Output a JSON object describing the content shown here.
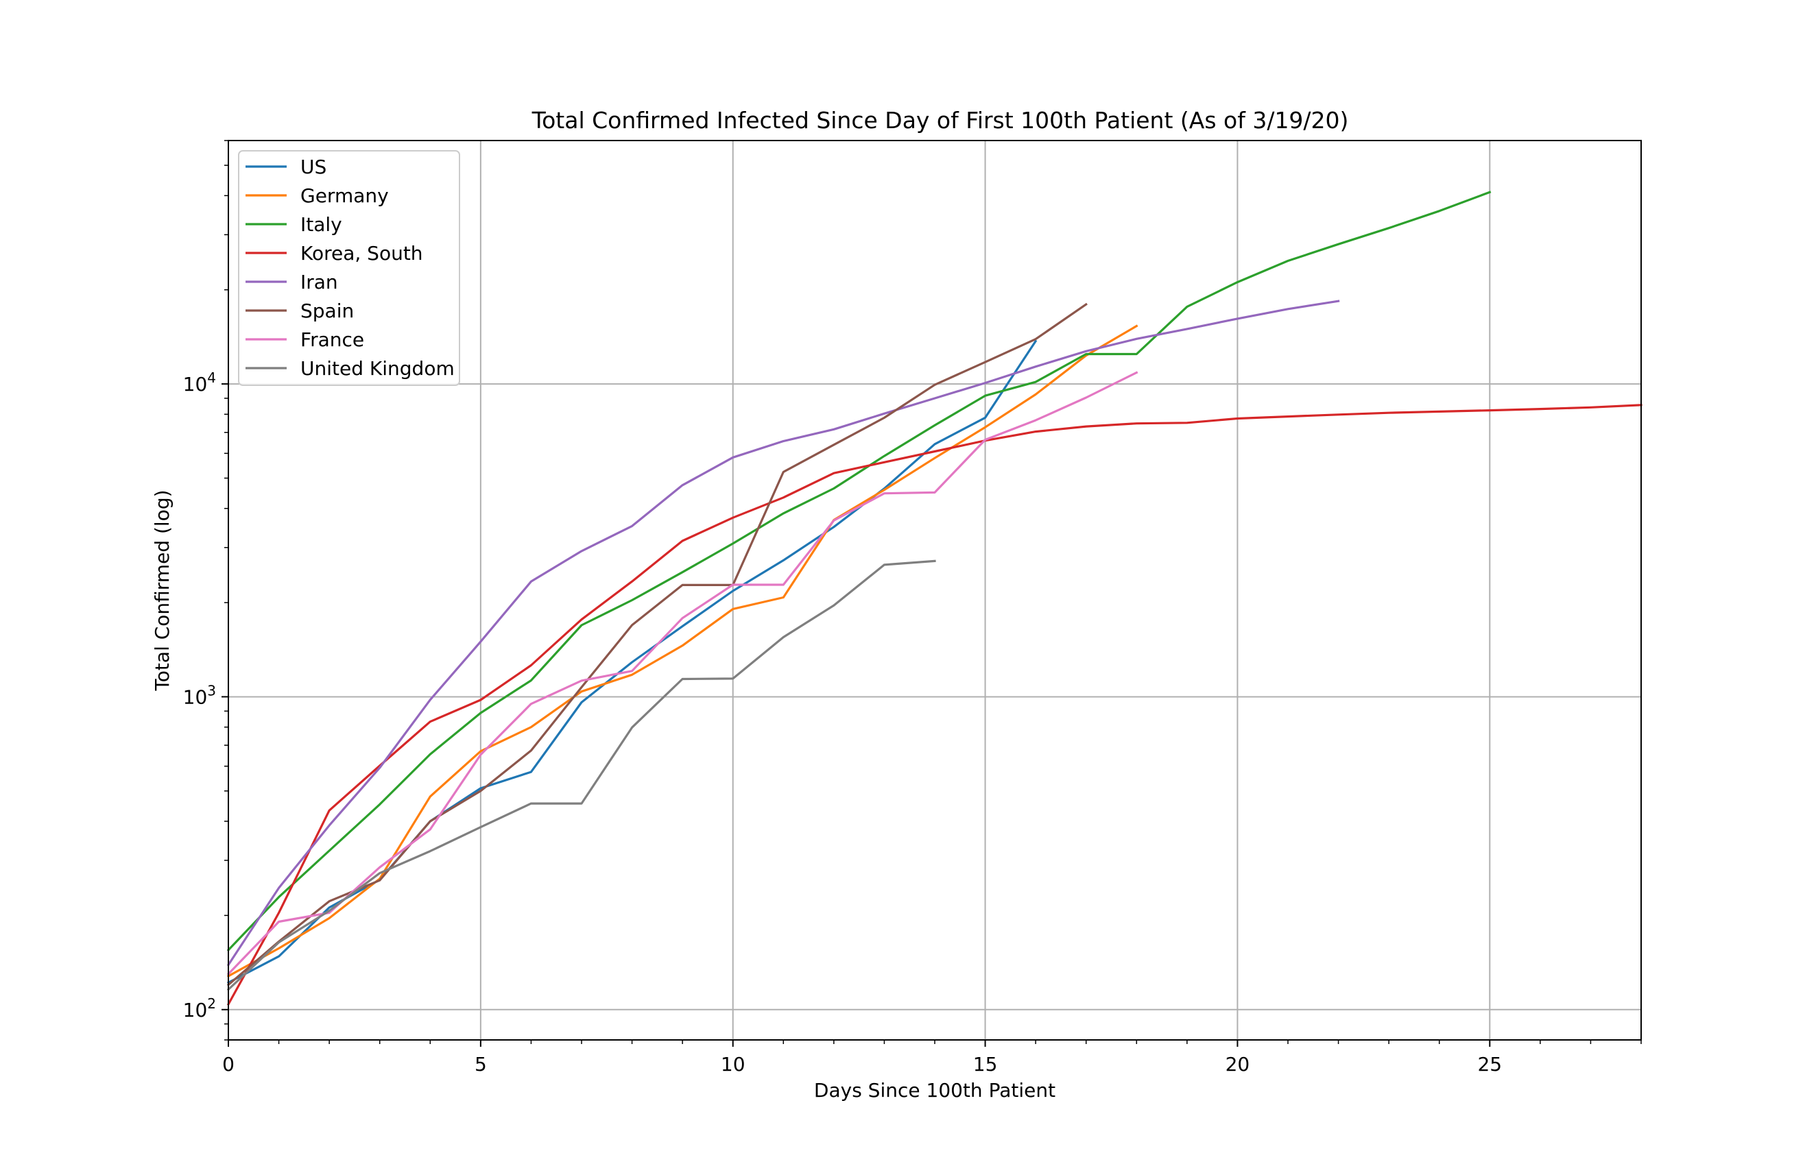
{
  "chart_data": {
    "type": "line",
    "title": "Total Confirmed Infected Since Day of First 100th Patient (As of 3/19/20)",
    "xlabel": "Days Since 100th Patient",
    "ylabel": "Total Confirmed (log)",
    "xlim": [
      0,
      28
    ],
    "ylim": [
      80,
      60000
    ],
    "yscale": "log",
    "grid": true,
    "legend_position": "top-left",
    "x_ticks": [
      0,
      5,
      10,
      15,
      20,
      25
    ],
    "y_ticks": [
      {
        "value": 100,
        "base": "10",
        "exp": "2"
      },
      {
        "value": 1000,
        "base": "10",
        "exp": "3"
      },
      {
        "value": 10000,
        "base": "10",
        "exp": "4"
      }
    ],
    "series": [
      {
        "name": "US",
        "color": "#1f77b4",
        "values": [
          122,
          148,
          212,
          260,
          400,
          510,
          575,
          960,
          1290,
          1680,
          2180,
          2730,
          3490,
          4630,
          6420,
          7800,
          13700
        ]
      },
      {
        "name": "Germany",
        "color": "#ff7f0e",
        "values": [
          128,
          157,
          196,
          262,
          480,
          670,
          800,
          1040,
          1176,
          1457,
          1908,
          2078,
          3675,
          4585,
          5795,
          7272,
          9257,
          12327,
          15320
        ]
      },
      {
        "name": "Italy",
        "color": "#2ca02c",
        "values": [
          155,
          229,
          322,
          453,
          655,
          888,
          1128,
          1694,
          2036,
          2502,
          3089,
          3858,
          4636,
          5883,
          7375,
          9172,
          10149,
          12462,
          12462,
          17660,
          21157,
          24747,
          27980,
          31506,
          35713,
          41035
        ]
      },
      {
        "name": "Korea, South",
        "color": "#d62728",
        "values": [
          104,
          204,
          433,
          602,
          833,
          977,
          1261,
          1766,
          2337,
          3150,
          3736,
          4335,
          5186,
          5621,
          6088,
          6593,
          7041,
          7314,
          7478,
          7513,
          7755,
          7869,
          7979,
          8086,
          8162,
          8236,
          8320,
          8413,
          8565
        ]
      },
      {
        "name": "Iran",
        "color": "#9467bd",
        "values": [
          139,
          245,
          388,
          593,
          978,
          1501,
          2336,
          2922,
          3513,
          4747,
          5823,
          6566,
          7161,
          8042,
          9000,
          10075,
          11364,
          12729,
          13938,
          14991,
          16169,
          17361,
          18407
        ]
      },
      {
        "name": "Spain",
        "color": "#8c564b",
        "values": [
          120,
          165,
          222,
          259,
          400,
          500,
          673,
          1073,
          1695,
          2277,
          2277,
          5232,
          6391,
          7798,
          9942,
          11748,
          13910,
          17963
        ]
      },
      {
        "name": "France",
        "color": "#e377c2",
        "values": [
          130,
          191,
          204,
          285,
          377,
          653,
          949,
          1126,
          1209,
          1784,
          2281,
          2281,
          3661,
          4469,
          4499,
          6633,
          7652,
          9043,
          10871
        ]
      },
      {
        "name": "United Kingdom",
        "color": "#7f7f7f",
        "values": [
          116,
          164,
          207,
          273,
          321,
          383,
          456,
          456,
          798,
          1140,
          1143,
          1551,
          1960,
          2642,
          2716
        ]
      }
    ]
  }
}
